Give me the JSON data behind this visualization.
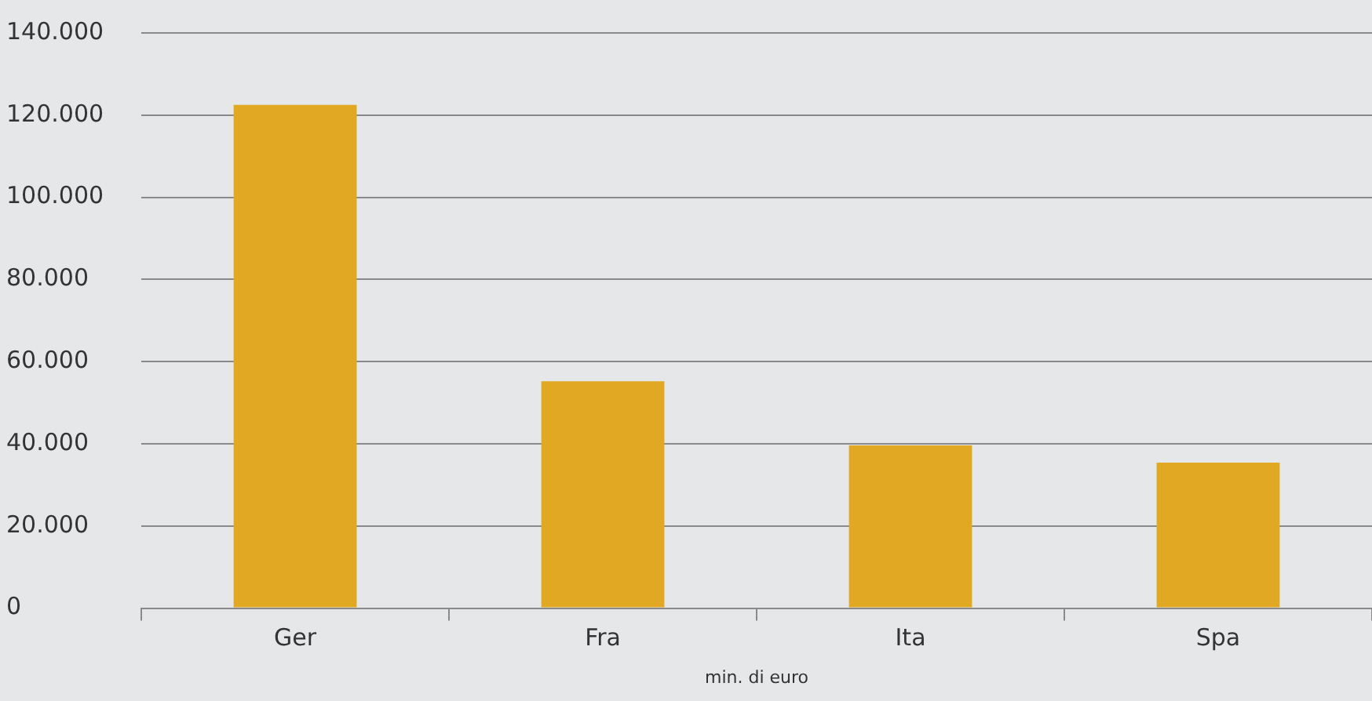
{
  "chart_data": {
    "type": "bar",
    "xlabel": "min. di euro",
    "categories": [
      "Ger",
      "Fra",
      "Ita",
      "Spa"
    ],
    "values": [
      122500,
      55200,
      39600,
      35400
    ],
    "color": "#e0a823",
    "ylim": [
      0,
      140000
    ],
    "yticks": [
      {
        "value": 0,
        "label": "0"
      },
      {
        "value": 20000,
        "label": "20.000"
      },
      {
        "value": 40000,
        "label": "40.000"
      },
      {
        "value": 60000,
        "label": "60.000"
      },
      {
        "value": 80000,
        "label": "80.000"
      },
      {
        "value": 100000,
        "label": "100.000"
      },
      {
        "value": 120000,
        "label": "120.000"
      },
      {
        "value": 140000,
        "label": "140.000"
      }
    ],
    "grid": "y",
    "legend": false
  }
}
